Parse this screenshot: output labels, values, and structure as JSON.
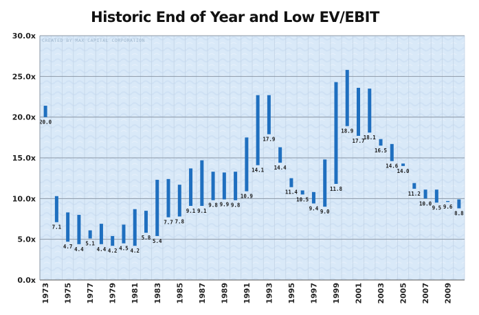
{
  "colors": {
    "bar": "#1f6fbf",
    "plot_background": "#d9e9f8",
    "plot_pattern": "#c8ddf2",
    "gridline": "#8b97a6",
    "axis": "#555555"
  },
  "watermark": "CREATED BY MAX CAPITAL CORPORATION",
  "chart_data": {
    "type": "floating-bar",
    "title": "Historic End of Year and Low EV/EBIT",
    "xlabel": "",
    "ylabel": "",
    "ylim": [
      0,
      30
    ],
    "yticks": [
      0,
      5,
      10,
      15,
      20,
      25,
      30
    ],
    "ytick_labels": [
      "0.0x",
      "5.0x",
      "10.0x",
      "15.0x",
      "20.0x",
      "25.0x",
      "30.0x"
    ],
    "xtick_labels": [
      "1973",
      "1975",
      "1977",
      "1979",
      "1981",
      "1983",
      "1985",
      "1987",
      "1989",
      "1991",
      "1993",
      "1995",
      "1997",
      "1999",
      "2001",
      "2003",
      "2005",
      "2007",
      "2009"
    ],
    "grid": true,
    "legend": "none",
    "years": [
      1973,
      1974,
      1975,
      1976,
      1977,
      1978,
      1979,
      1980,
      1981,
      1982,
      1983,
      1984,
      1985,
      1986,
      1987,
      1988,
      1989,
      1990,
      1991,
      1992,
      1993,
      1994,
      1995,
      1996,
      1997,
      1998,
      1999,
      2000,
      2001,
      2002,
      2003,
      2004,
      2005,
      2006,
      2007,
      2008,
      2009,
      2010
    ],
    "low_values": [
      20.0,
      7.1,
      4.7,
      4.4,
      5.1,
      4.4,
      4.2,
      4.5,
      4.2,
      5.8,
      5.4,
      7.7,
      7.8,
      9.1,
      9.1,
      9.8,
      9.9,
      9.8,
      10.9,
      14.1,
      17.9,
      14.4,
      11.4,
      10.5,
      9.4,
      9.0,
      11.8,
      18.9,
      17.7,
      18.1,
      16.5,
      14.6,
      14.0,
      11.2,
      10.0,
      9.5,
      9.6,
      8.8
    ],
    "low_labels": [
      "20.0",
      "7.1",
      "4.7",
      "4.4",
      "5.1",
      "4.4",
      "4.2",
      "4.5",
      "4.2",
      "5.8",
      "5.4",
      "7.7",
      "7.8",
      "9.1",
      "9.1",
      "9.8",
      "9.9",
      "9.8",
      "10.9",
      "14.1",
      "17.9",
      "14.4",
      "11.4",
      "10.5",
      "9.4",
      "9.0",
      "11.8",
      "18.9",
      "17.7",
      "18.1",
      "16.5",
      "14.6",
      "14.0",
      "11.2",
      "10.0",
      "9.5",
      "9.6",
      "8.8"
    ],
    "end_values": [
      21.4,
      10.3,
      8.3,
      8.0,
      6.1,
      6.9,
      5.4,
      6.8,
      8.7,
      8.5,
      12.3,
      12.4,
      11.7,
      13.7,
      14.7,
      13.3,
      13.2,
      13.3,
      17.5,
      22.7,
      22.7,
      16.3,
      12.5,
      11.0,
      10.8,
      14.8,
      24.3,
      25.8,
      23.6,
      23.5,
      17.3,
      16.7,
      14.3,
      11.9,
      11.1,
      11.1,
      9.7,
      9.9
    ]
  }
}
